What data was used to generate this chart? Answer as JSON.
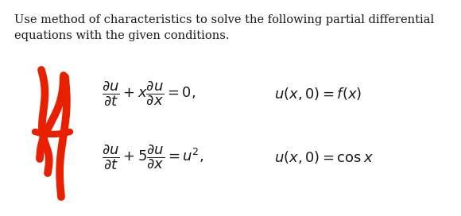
{
  "title_text": "Use method of characteristics to solve the following partial differential\nequations with the given conditions.",
  "eq1": "$\\dfrac{\\partial u}{\\partial t} + x\\dfrac{\\partial u}{\\partial x} = 0,$",
  "eq1_cond": "$u(x, 0) = f(x)$",
  "eq2": "$\\dfrac{\\partial u}{\\partial t} + 5\\dfrac{\\partial u}{\\partial x} = u^2,$",
  "eq2_cond": "$u(x, 0) = \\cos x$",
  "bg_color": "#ffffff",
  "text_color": "#1a1a1a",
  "red_mark_color": "#e82000",
  "title_fontsize": 10.5,
  "eq_fontsize": 13,
  "cond_fontsize": 13
}
